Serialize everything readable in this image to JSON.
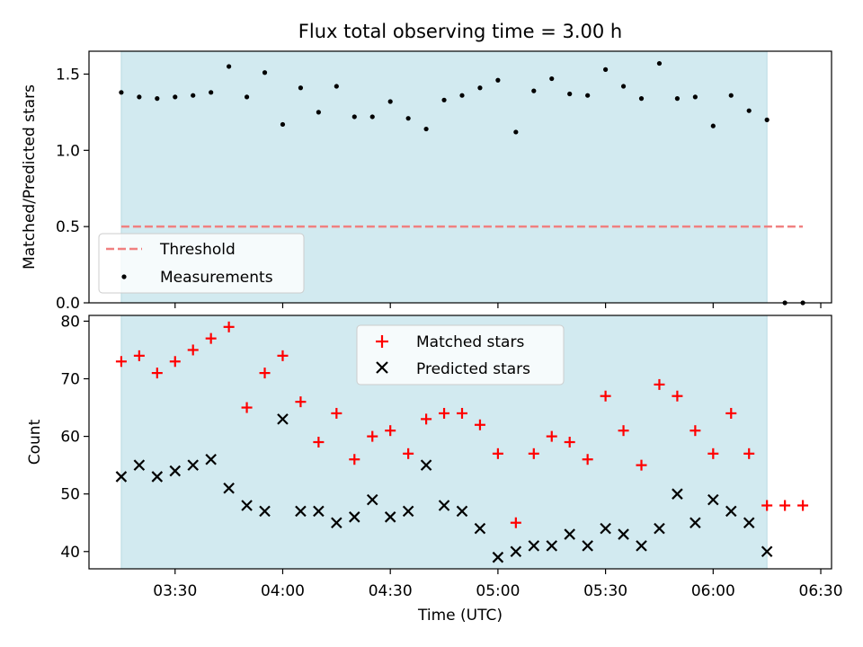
{
  "figure": {
    "title": "Flux total observing time = 3.00 h",
    "xlabel": "Time (UTC)",
    "x_ticks": [
      "03:30",
      "04:00",
      "04:30",
      "05:00",
      "05:30",
      "06:00",
      "06:30"
    ],
    "x_tick_minutes": [
      210,
      240,
      270,
      300,
      330,
      360,
      390
    ],
    "xlim_minutes": [
      186,
      393
    ],
    "shade_range_minutes": [
      195,
      375
    ],
    "shade_color": "#d2eaf0"
  },
  "chart_data": [
    {
      "type": "scatter",
      "panel": "top",
      "ylabel": "Matched/Predicted stars",
      "ylim": [
        0,
        1.65
      ],
      "y_ticks": [
        0.0,
        0.5,
        1.0,
        1.5
      ],
      "y_tick_labels": [
        "0.0",
        "0.5",
        "1.0",
        "1.5"
      ],
      "legend_position": "lower-left",
      "threshold": {
        "name": "Threshold",
        "value": 0.5,
        "x_range_minutes": [
          195,
          385
        ],
        "color": "#f08080",
        "style": "dashed"
      },
      "series": [
        {
          "name": "Measurements",
          "color": "#000000",
          "marker": "dot",
          "x_minutes": [
            195,
            200,
            205,
            210,
            215,
            220,
            225,
            230,
            235,
            240,
            245,
            250,
            255,
            260,
            265,
            270,
            275,
            280,
            285,
            290,
            295,
            300,
            305,
            310,
            315,
            320,
            325,
            330,
            335,
            340,
            345,
            350,
            355,
            360,
            365,
            370,
            375,
            380,
            385
          ],
          "values": [
            1.38,
            1.35,
            1.34,
            1.35,
            1.36,
            1.38,
            1.55,
            1.35,
            1.51,
            1.17,
            1.41,
            1.25,
            1.42,
            1.22,
            1.22,
            1.32,
            1.21,
            1.14,
            1.33,
            1.36,
            1.41,
            1.46,
            1.12,
            1.39,
            1.47,
            1.37,
            1.36,
            1.53,
            1.42,
            1.34,
            1.57,
            1.34,
            1.35,
            1.16,
            1.36,
            1.26,
            1.2,
            0.0,
            0.0
          ]
        }
      ]
    },
    {
      "type": "scatter",
      "panel": "bottom",
      "ylabel": "Count",
      "ylim": [
        37,
        81
      ],
      "y_ticks": [
        40,
        50,
        60,
        70,
        80
      ],
      "y_tick_labels": [
        "40",
        "50",
        "60",
        "70",
        "80"
      ],
      "legend_position": "upper-center",
      "series": [
        {
          "name": "Matched stars",
          "color": "#ff0000",
          "marker": "plus",
          "x_minutes": [
            195,
            200,
            205,
            210,
            215,
            220,
            225,
            230,
            235,
            240,
            245,
            250,
            255,
            260,
            265,
            270,
            275,
            280,
            285,
            290,
            295,
            300,
            305,
            310,
            315,
            320,
            325,
            330,
            335,
            340,
            345,
            350,
            355,
            360,
            365,
            370,
            375,
            380,
            385
          ],
          "values": [
            73,
            74,
            71,
            73,
            75,
            77,
            79,
            65,
            71,
            74,
            66,
            59,
            64,
            56,
            60,
            61,
            57,
            63,
            64,
            64,
            62,
            57,
            45,
            57,
            60,
            59,
            56,
            67,
            61,
            55,
            69,
            67,
            61,
            57,
            64,
            57,
            48,
            48,
            48
          ]
        },
        {
          "name": "Predicted stars",
          "color": "#000000",
          "marker": "x",
          "x_minutes": [
            195,
            200,
            205,
            210,
            215,
            220,
            225,
            230,
            235,
            240,
            245,
            250,
            255,
            260,
            265,
            270,
            275,
            280,
            285,
            290,
            295,
            300,
            305,
            310,
            315,
            320,
            325,
            330,
            335,
            340,
            345,
            350,
            355,
            360,
            365,
            370,
            375
          ],
          "values": [
            53,
            55,
            53,
            54,
            55,
            56,
            51,
            48,
            47,
            63,
            47,
            47,
            45,
            46,
            49,
            46,
            47,
            55,
            48,
            47,
            44,
            39,
            40,
            41,
            41,
            43,
            41,
            44,
            43,
            41,
            44,
            50,
            45,
            49,
            47,
            45,
            40
          ]
        }
      ]
    }
  ]
}
